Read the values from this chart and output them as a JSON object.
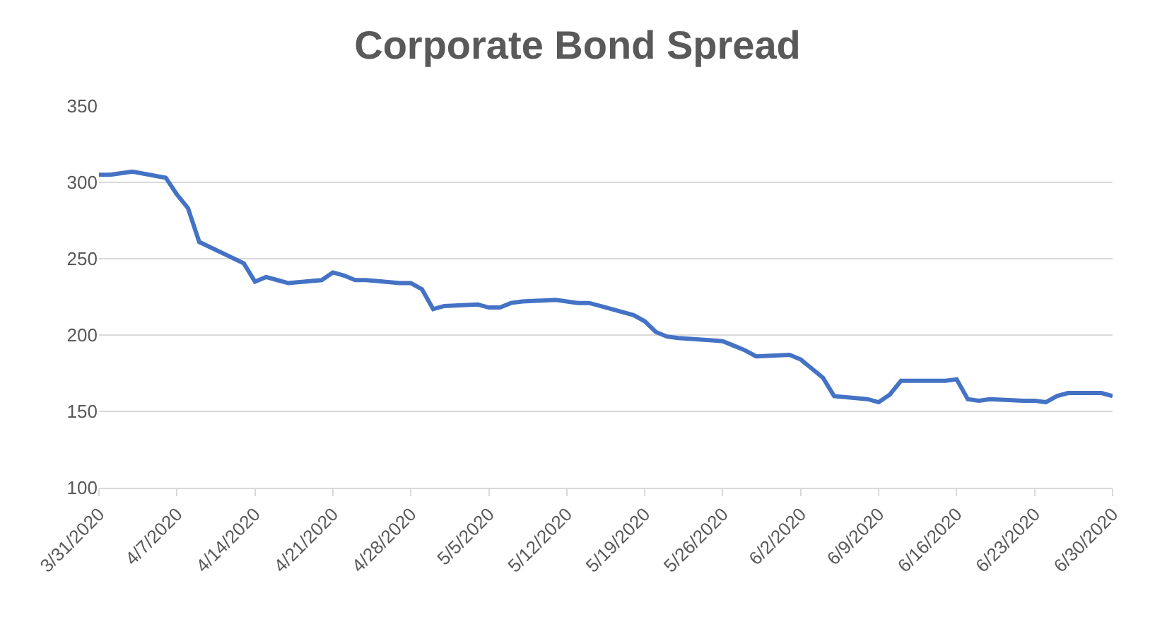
{
  "chart_data": {
    "type": "line",
    "title": "Corporate Bond Spread",
    "x": [
      "2020-03-31",
      "2020-04-01",
      "2020-04-02",
      "2020-04-03",
      "2020-04-06",
      "2020-04-07",
      "2020-04-08",
      "2020-04-09",
      "2020-04-13",
      "2020-04-14",
      "2020-04-15",
      "2020-04-16",
      "2020-04-17",
      "2020-04-20",
      "2020-04-21",
      "2020-04-22",
      "2020-04-23",
      "2020-04-24",
      "2020-04-27",
      "2020-04-28",
      "2020-04-29",
      "2020-04-30",
      "2020-05-01",
      "2020-05-04",
      "2020-05-05",
      "2020-05-06",
      "2020-05-07",
      "2020-05-08",
      "2020-05-11",
      "2020-05-12",
      "2020-05-13",
      "2020-05-14",
      "2020-05-15",
      "2020-05-18",
      "2020-05-19",
      "2020-05-20",
      "2020-05-21",
      "2020-05-22",
      "2020-05-26",
      "2020-05-27",
      "2020-05-28",
      "2020-05-29",
      "2020-06-01",
      "2020-06-02",
      "2020-06-03",
      "2020-06-04",
      "2020-06-05",
      "2020-06-08",
      "2020-06-09",
      "2020-06-10",
      "2020-06-11",
      "2020-06-12",
      "2020-06-15",
      "2020-06-16",
      "2020-06-17",
      "2020-06-18",
      "2020-06-19",
      "2020-06-22",
      "2020-06-23",
      "2020-06-24",
      "2020-06-25",
      "2020-06-26",
      "2020-06-29",
      "2020-06-30"
    ],
    "series": [
      {
        "color": "#4472c4",
        "values": [
          305,
          305,
          306,
          307,
          303,
          292,
          283,
          261,
          247,
          235,
          238,
          236,
          234,
          236,
          241,
          239,
          236,
          236,
          234,
          234,
          230,
          217,
          219,
          220,
          218,
          218,
          221,
          222,
          223,
          222,
          221,
          221,
          219,
          213,
          209,
          202,
          199,
          198,
          196,
          193,
          190,
          186,
          187,
          184,
          178,
          172,
          160,
          158,
          156,
          161,
          170,
          170,
          170,
          171,
          158,
          157,
          158,
          157,
          157,
          156,
          160,
          162,
          162,
          160
        ]
      }
    ],
    "xlim": [
      "2020-03-31",
      "2020-06-30"
    ],
    "xticks": [
      {
        "value": "2020-03-31",
        "label": "3/31/2020"
      },
      {
        "value": "2020-04-07",
        "label": "4/7/2020"
      },
      {
        "value": "2020-04-14",
        "label": "4/14/2020"
      },
      {
        "value": "2020-04-21",
        "label": "4/21/2020"
      },
      {
        "value": "2020-04-28",
        "label": "4/28/2020"
      },
      {
        "value": "2020-05-05",
        "label": "5/5/2020"
      },
      {
        "value": "2020-05-12",
        "label": "5/12/2020"
      },
      {
        "value": "2020-05-19",
        "label": "5/19/2020"
      },
      {
        "value": "2020-05-26",
        "label": "5/26/2020"
      },
      {
        "value": "2020-06-02",
        "label": "6/2/2020"
      },
      {
        "value": "2020-06-09",
        "label": "6/9/2020"
      },
      {
        "value": "2020-06-16",
        "label": "6/16/2020"
      },
      {
        "value": "2020-06-23",
        "label": "6/23/2020"
      },
      {
        "value": "2020-06-30",
        "label": "6/30/2020"
      }
    ],
    "ylim": [
      100,
      350
    ],
    "yticks": [
      100,
      150,
      200,
      250,
      300,
      350
    ],
    "grid": "y",
    "marker": "none",
    "line_style": "solid"
  }
}
